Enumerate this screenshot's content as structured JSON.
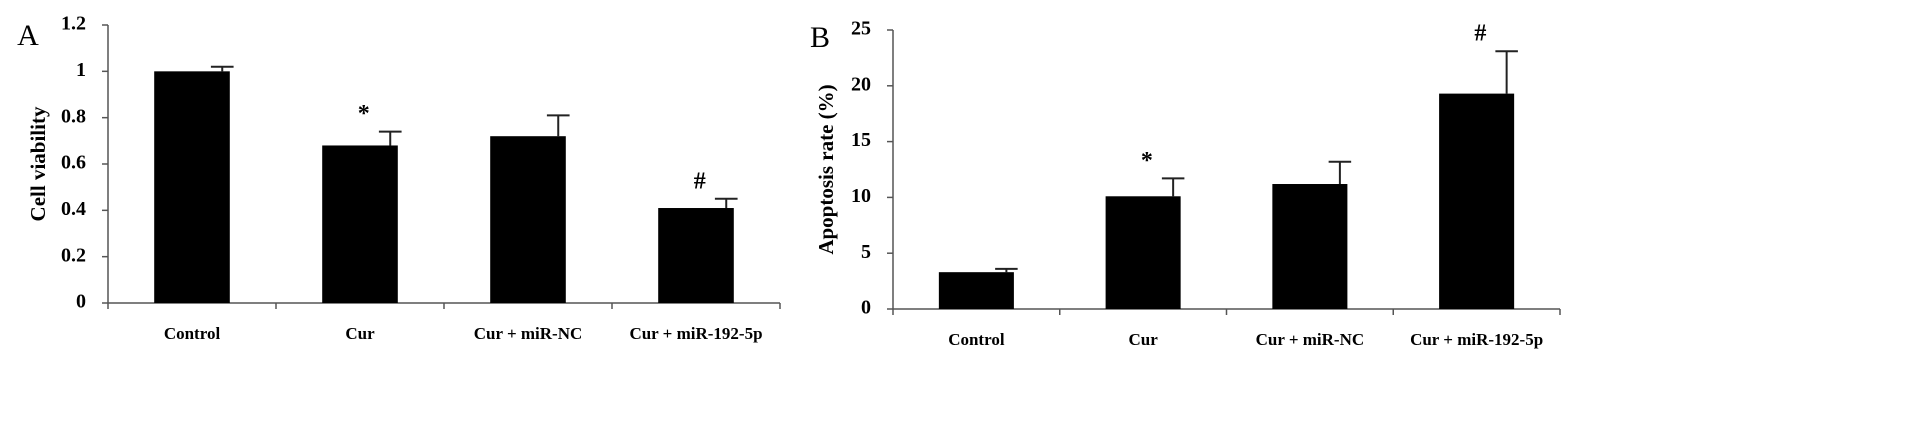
{
  "chart_data": [
    {
      "type": "bar",
      "panel_label": "A",
      "y_label": "Cell viability",
      "categories": [
        "Control",
        "Cur",
        "Cur + miR-NC",
        "Cur + miR-192-5p"
      ],
      "values": [
        1.0,
        0.68,
        0.72,
        0.41
      ],
      "errors": [
        0.02,
        0.06,
        0.09,
        0.04
      ],
      "color": "#000000",
      "ylim": [
        0,
        1.2
      ],
      "yticks": [
        0,
        0.2,
        0.4,
        0.6,
        0.8,
        1,
        1.2
      ],
      "annotations": [
        {
          "category": "Cur",
          "text": "*"
        },
        {
          "category": "Cur + miR-192-5p",
          "text": "#"
        }
      ]
    },
    {
      "type": "bar",
      "panel_label": "B",
      "y_label": "Apoptosis rate (%)",
      "categories": [
        "Control",
        "Cur",
        "Cur + miR-NC",
        "Cur + miR-192-5p"
      ],
      "values": [
        3.3,
        10.1,
        11.2,
        19.3
      ],
      "errors": [
        0.3,
        1.6,
        2.0,
        3.8
      ],
      "color": "#000000",
      "ylim": [
        0,
        25
      ],
      "yticks": [
        0,
        5,
        10,
        15,
        20,
        25
      ],
      "annotations": [
        {
          "category": "Cur",
          "text": "*"
        },
        {
          "category": "Cur + miR-192-5p",
          "text": "#"
        }
      ]
    }
  ]
}
